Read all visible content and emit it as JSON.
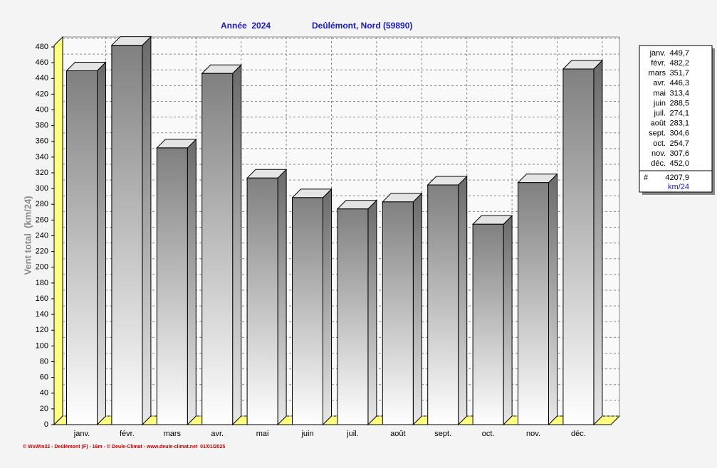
{
  "chart_data": {
    "type": "bar3d",
    "title": "Année  2024",
    "subtitle": "Deûlémont, Nord (59890)",
    "y_label": "Vent total  (km/24)",
    "categories": [
      "janv.",
      "févr.",
      "mars",
      "avr.",
      "mai",
      "juin",
      "juil.",
      "août",
      "sept.",
      "oct.",
      "nov.",
      "déc."
    ],
    "values": [
      449.7,
      482.2,
      351.7,
      446.3,
      313.4,
      288.5,
      274.1,
      283.1,
      304.6,
      254.7,
      307.6,
      452.0
    ],
    "value_labels": [
      "449,7",
      "482,2",
      "351,7",
      "446,3",
      "313,4",
      "288,5",
      "274,1",
      "283,1",
      "304,6",
      "254,7",
      "307,6",
      "452,0"
    ],
    "ylim": [
      0,
      480
    ],
    "yticks": [
      0,
      20,
      40,
      60,
      80,
      100,
      120,
      140,
      160,
      180,
      200,
      220,
      240,
      260,
      280,
      300,
      320,
      340,
      360,
      380,
      400,
      420,
      440,
      460,
      480
    ],
    "grid": true,
    "legend": {
      "total_symbol": "#",
      "total": "4207,9",
      "unit": "km/24"
    },
    "footer": "© WxWin32 - Deûlémont (F) - 16m - © Deule-Climat - www.deule-climat.net  01/01/2025"
  }
}
